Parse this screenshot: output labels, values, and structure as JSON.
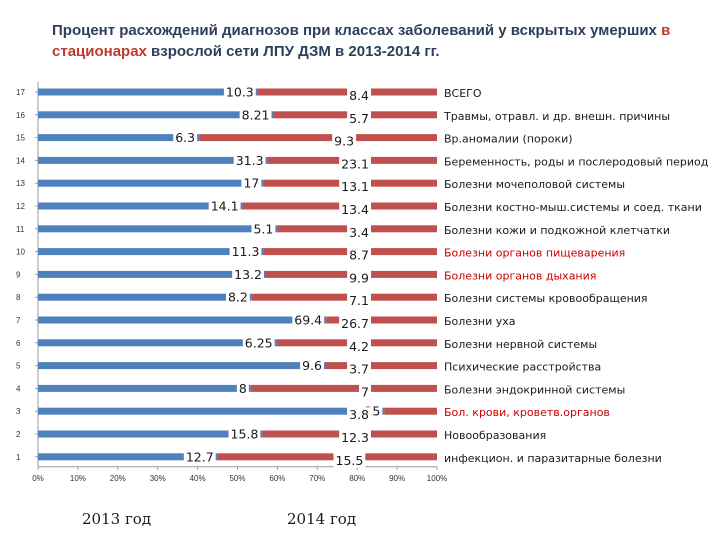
{
  "title": {
    "part1": "Процент расхождений диагнозов при классах заболеваний у вскрытых умерших ",
    "highlight": "в стационарах",
    "part2": " взрослой сети ЛПУ ДЗМ в 2013-2014 гг."
  },
  "colors": {
    "series_2013": "#4f81bd",
    "series_2014": "#c0504d",
    "title_text": "#2e3f5c",
    "title_highlight": "#c0392b",
    "red_category": "#cc0000"
  },
  "chart_data": {
    "type": "bar",
    "stacked": "percent",
    "orientation": "horizontal",
    "y_ticks": [
      "17",
      "16",
      "15",
      "14",
      "13",
      "12",
      "11",
      "10",
      "9",
      "8",
      "7",
      "6",
      "5",
      "4",
      "3",
      "2",
      "1"
    ],
    "x_ticks": [
      "0%",
      "10%",
      "20%",
      "30%",
      "40%",
      "50%",
      "60%",
      "70%",
      "80%",
      "90%",
      "100%"
    ],
    "xlim": [
      0,
      100
    ],
    "categories": [
      "ВСЕГО",
      "Травмы, отравл. и др. внешн. причины",
      "Вр.аномалии (пороки)",
      "Беременность, роды и послеродовый период",
      "Болезни мочеполовой системы",
      "Болезни костно-мыш.системы и соед. ткани",
      "Болезни кожи и подкожной клетчатки",
      "Болезни органов пищеварения",
      "Болезни органов дыхания",
      "Болезни системы кровообращения",
      "Болезни уха",
      "Болезни нервной системы",
      "Психические расстройства",
      "Болезни эндокринной системы",
      "Бол. крови, кроветв.органов",
      "Новообразования",
      "инфекцион. и паразитарные болезни"
    ],
    "red_categories": [
      7,
      8,
      14
    ],
    "series": [
      {
        "name": "2013 год",
        "values": [
          10.3,
          8.21,
          6.3,
          31.3,
          17,
          14.1,
          5.1,
          11.3,
          13.2,
          8.2,
          69.4,
          6.25,
          9.6,
          8,
          25,
          15.8,
          12.7
        ],
        "labels": [
          "10.3",
          "8.21",
          "6.3",
          "31.3",
          "17",
          "14.1",
          "5.1",
          "11.3",
          "13.2",
          "8.2",
          "69.4",
          "6.25",
          "9.6",
          "8",
          "25",
          "15.8",
          "12.7"
        ]
      },
      {
        "name": "2014 год",
        "values": [
          8.4,
          5.7,
          9.3,
          23.1,
          13.1,
          13.4,
          3.4,
          8.7,
          9.9,
          7.1,
          26.7,
          4.2,
          3.7,
          7,
          3.8,
          12.3,
          15.5
        ],
        "labels": [
          "8.4",
          "5.7",
          "9.3",
          "23.1",
          "13.1",
          "13.4",
          "3.4",
          "8.7",
          "9.9",
          "7.1",
          "26.7",
          "4.2",
          "3.7",
          "7",
          "3.8",
          "12.3",
          "15.5"
        ]
      }
    ],
    "legend_position": "bottom",
    "grid": false
  }
}
